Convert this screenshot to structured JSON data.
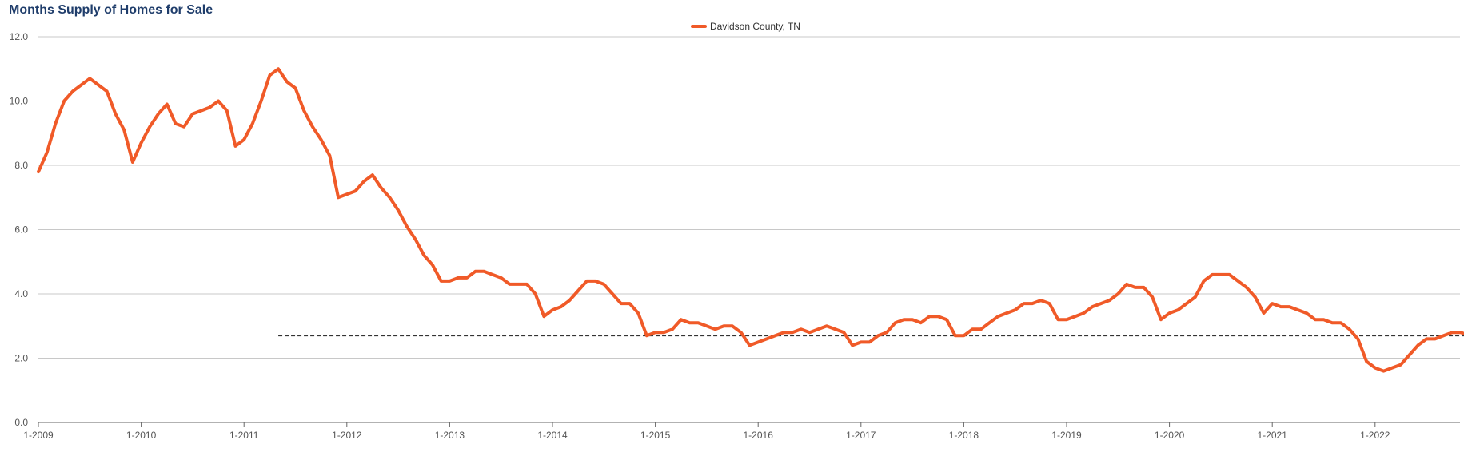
{
  "chart_data": {
    "type": "line",
    "title": "Months Supply of Homes for Sale",
    "xlabel": "",
    "ylabel": "",
    "ylim": [
      0,
      12
    ],
    "y_ticks": [
      "0.0",
      "2.0",
      "4.0",
      "6.0",
      "8.0",
      "10.0",
      "12.0"
    ],
    "x_ticks": [
      "1-2009",
      "1-2010",
      "1-2011",
      "1-2012",
      "1-2013",
      "1-2014",
      "1-2015",
      "1-2016",
      "1-2017",
      "1-2018",
      "1-2019",
      "1-2020",
      "1-2021",
      "1-2022"
    ],
    "x_start": "1-2009",
    "x_end": "12-2022",
    "grid": true,
    "legend_position": "top-center",
    "series": [
      {
        "name": "Davidson County, TN",
        "color": "#f05a28",
        "values": [
          7.8,
          8.4,
          9.3,
          10.0,
          10.3,
          10.5,
          10.7,
          10.5,
          10.3,
          9.6,
          9.1,
          8.1,
          8.7,
          9.2,
          9.6,
          9.9,
          9.3,
          9.2,
          9.6,
          9.7,
          9.8,
          10.0,
          9.7,
          8.6,
          8.8,
          9.3,
          10.0,
          10.8,
          11.0,
          10.6,
          10.4,
          9.7,
          9.2,
          8.8,
          8.3,
          7.0,
          7.1,
          7.2,
          7.5,
          7.7,
          7.3,
          7.0,
          6.6,
          6.1,
          5.7,
          5.2,
          4.9,
          4.4,
          4.4,
          4.5,
          4.5,
          4.7,
          4.7,
          4.6,
          4.5,
          4.3,
          4.3,
          4.3,
          4.0,
          3.3,
          3.5,
          3.6,
          3.8,
          4.1,
          4.4,
          4.4,
          4.3,
          4.0,
          3.7,
          3.7,
          3.4,
          2.7,
          2.8,
          2.8,
          2.9,
          3.2,
          3.1,
          3.1,
          3.0,
          2.9,
          3.0,
          3.0,
          2.8,
          2.4,
          2.5,
          2.6,
          2.7,
          2.8,
          2.8,
          2.9,
          2.8,
          2.9,
          3.0,
          2.9,
          2.8,
          2.4,
          2.5,
          2.5,
          2.7,
          2.8,
          3.1,
          3.2,
          3.2,
          3.1,
          3.3,
          3.3,
          3.2,
          2.7,
          2.7,
          2.9,
          2.9,
          3.1,
          3.3,
          3.4,
          3.5,
          3.7,
          3.7,
          3.8,
          3.7,
          3.2,
          3.2,
          3.3,
          3.4,
          3.6,
          3.7,
          3.8,
          4.0,
          4.3,
          4.2,
          4.2,
          3.9,
          3.2,
          3.4,
          3.5,
          3.7,
          3.9,
          4.4,
          4.6,
          4.6,
          4.6,
          4.4,
          4.2,
          3.9,
          3.4,
          3.7,
          3.6,
          3.6,
          3.5,
          3.4,
          3.2,
          3.2,
          3.1,
          3.1,
          2.9,
          2.6,
          1.9,
          1.7,
          1.6,
          1.7,
          1.8,
          2.1,
          2.4,
          2.6,
          2.6,
          2.7,
          2.8,
          2.8,
          2.7
        ]
      }
    ],
    "reference_line": {
      "value": 2.7,
      "from": "5-2011",
      "style": "dashed",
      "color": "#333333"
    }
  }
}
